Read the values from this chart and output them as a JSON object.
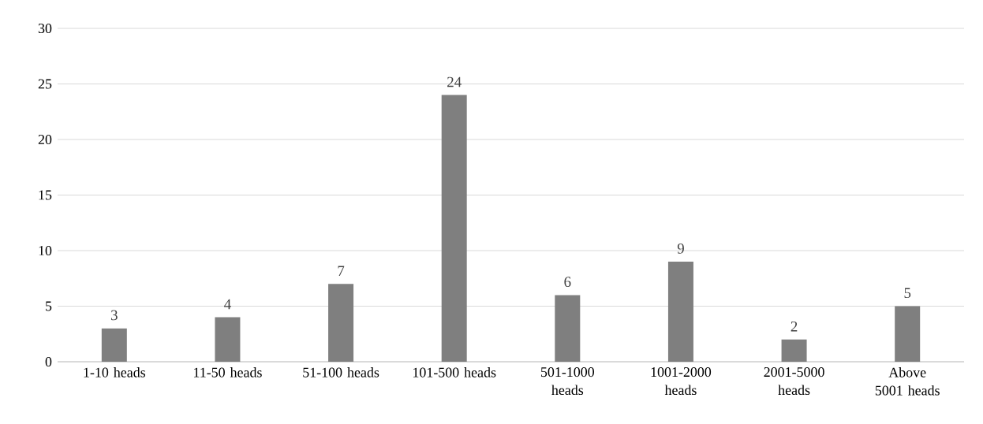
{
  "chart_data": {
    "type": "bar",
    "categories": [
      "1-10 heads",
      "11-50 heads",
      "51-100 heads",
      "101-500 heads",
      "501-1000 heads",
      "1001-2000 heads",
      "2001-5000 heads",
      "Above 5001 heads"
    ],
    "values": [
      3,
      4,
      7,
      24,
      6,
      9,
      2,
      5
    ],
    "color": "#7f7f7f",
    "ylim": [
      0,
      30
    ],
    "yticks": [
      0,
      5,
      10,
      15,
      20,
      25,
      30
    ],
    "grid": "y",
    "data_labels": true
  }
}
